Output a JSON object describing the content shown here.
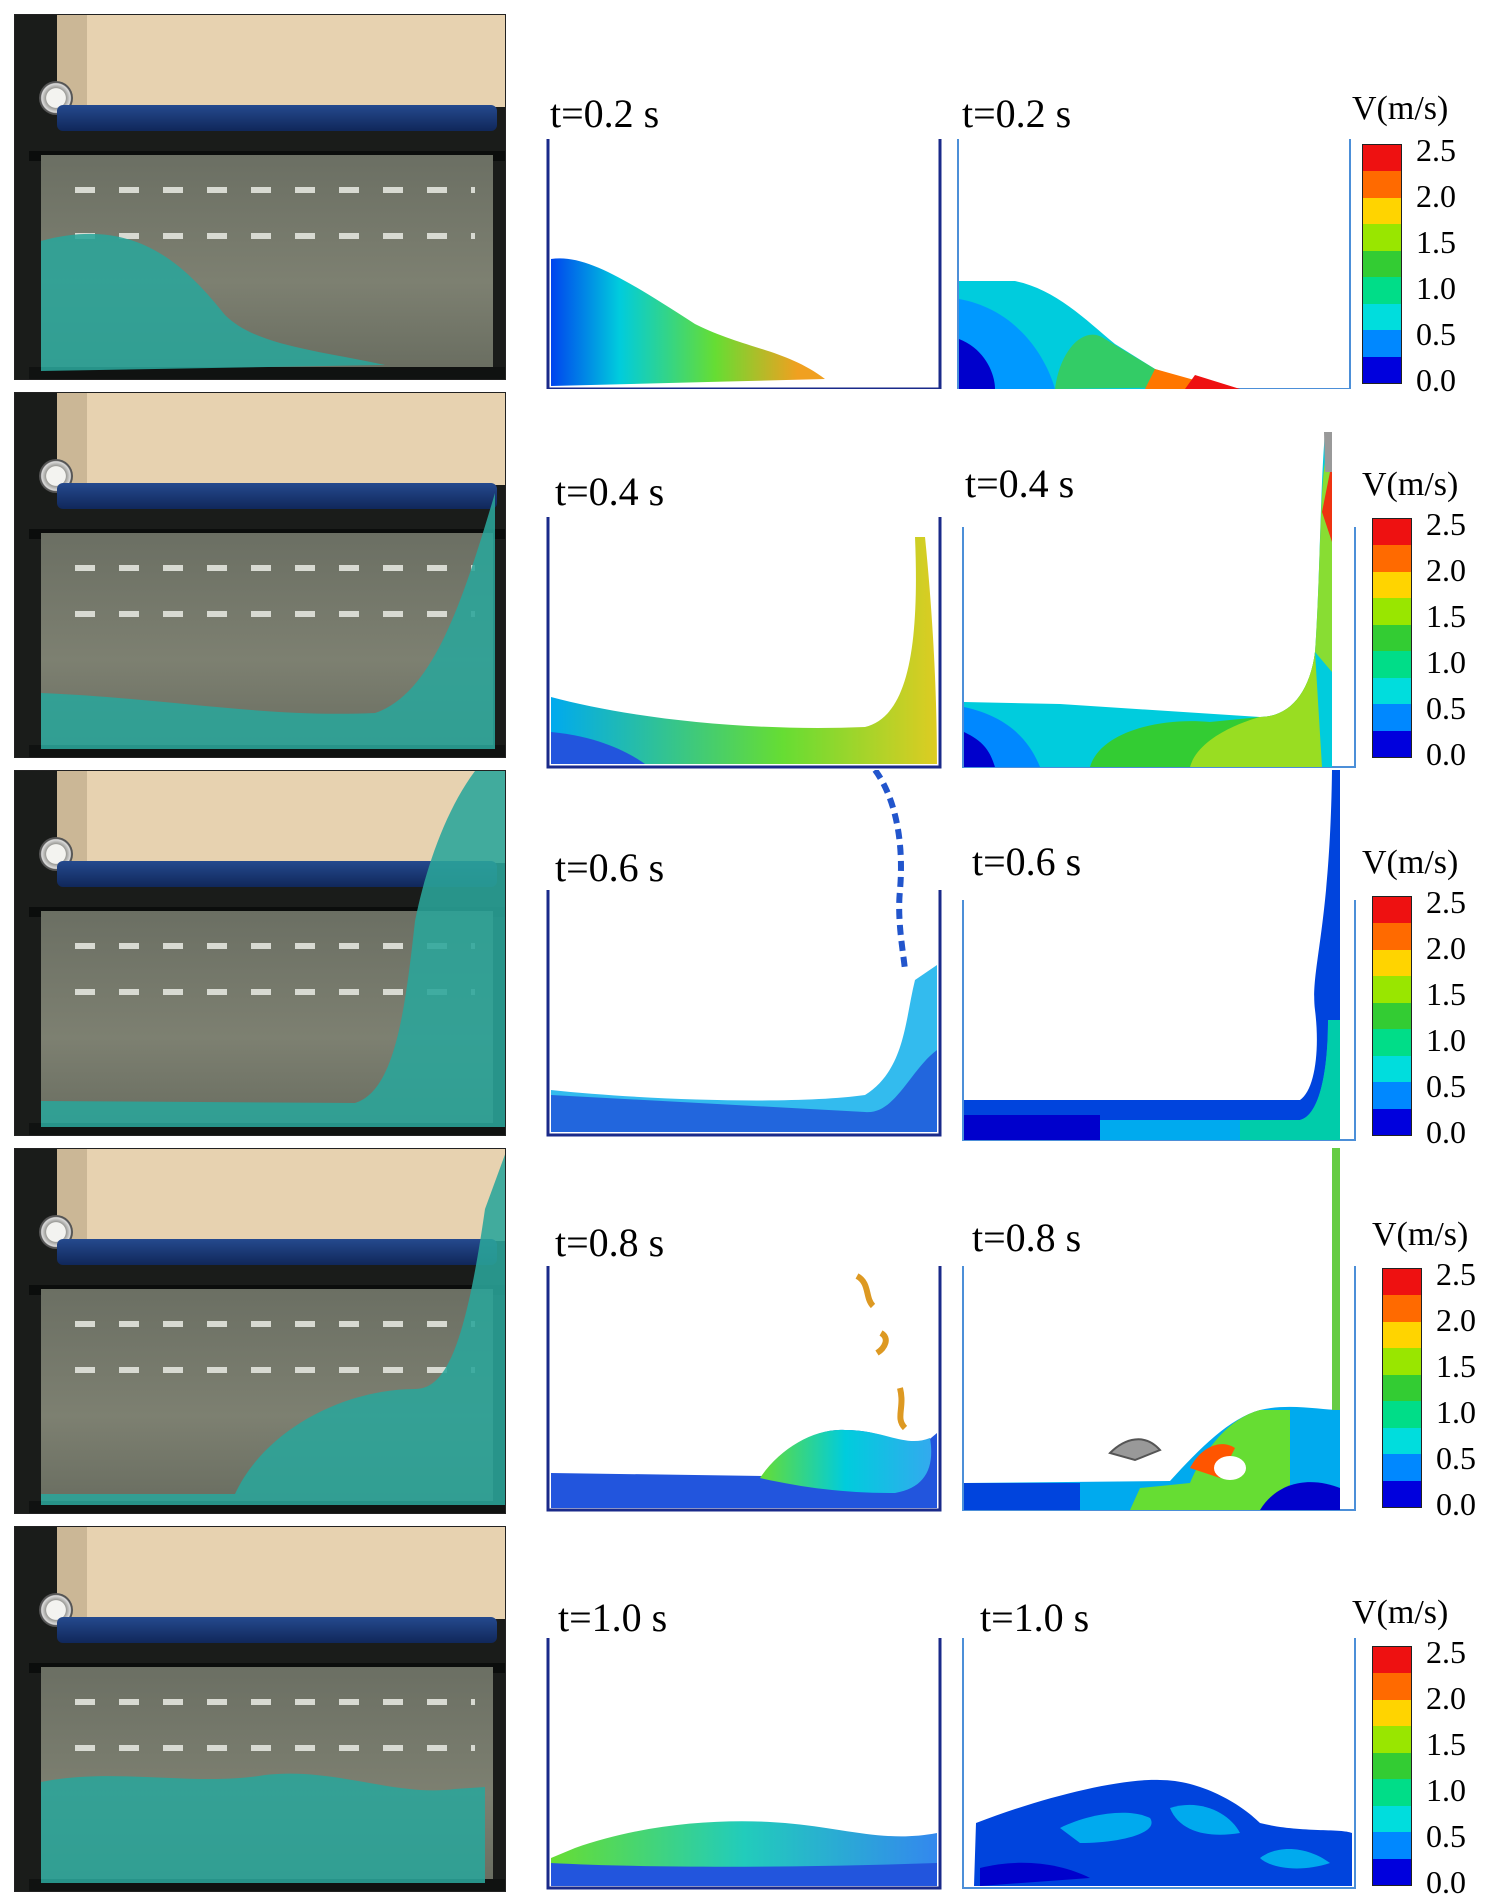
{
  "rows": [
    {
      "time_left": "t=0.2 s",
      "time_right": "t=0.2 s",
      "legend_title": "V(m/s)"
    },
    {
      "time_left": "t=0.4 s",
      "time_right": "t=0.4 s",
      "legend_title": "V(m/s)"
    },
    {
      "time_left": "t=0.6 s",
      "time_right": "t=0.6 s",
      "legend_title": "V(m/s)"
    },
    {
      "time_left": "t=0.8 s",
      "time_right": "t=0.8 s",
      "legend_title": "V(m/s)"
    },
    {
      "time_left": "t=1.0 s",
      "time_right": "t=1.0 s",
      "legend_title": "V(m/s)"
    }
  ],
  "legend_ticks": [
    "2.5",
    "2.0",
    "1.5",
    "1.0",
    "0.5",
    "0.0"
  ],
  "legend_colors": [
    "#ee1111",
    "#ff6a00",
    "#ffd400",
    "#99e600",
    "#33cc33",
    "#00dd88",
    "#00dddd",
    "#0088ff",
    "#0000dd"
  ]
}
